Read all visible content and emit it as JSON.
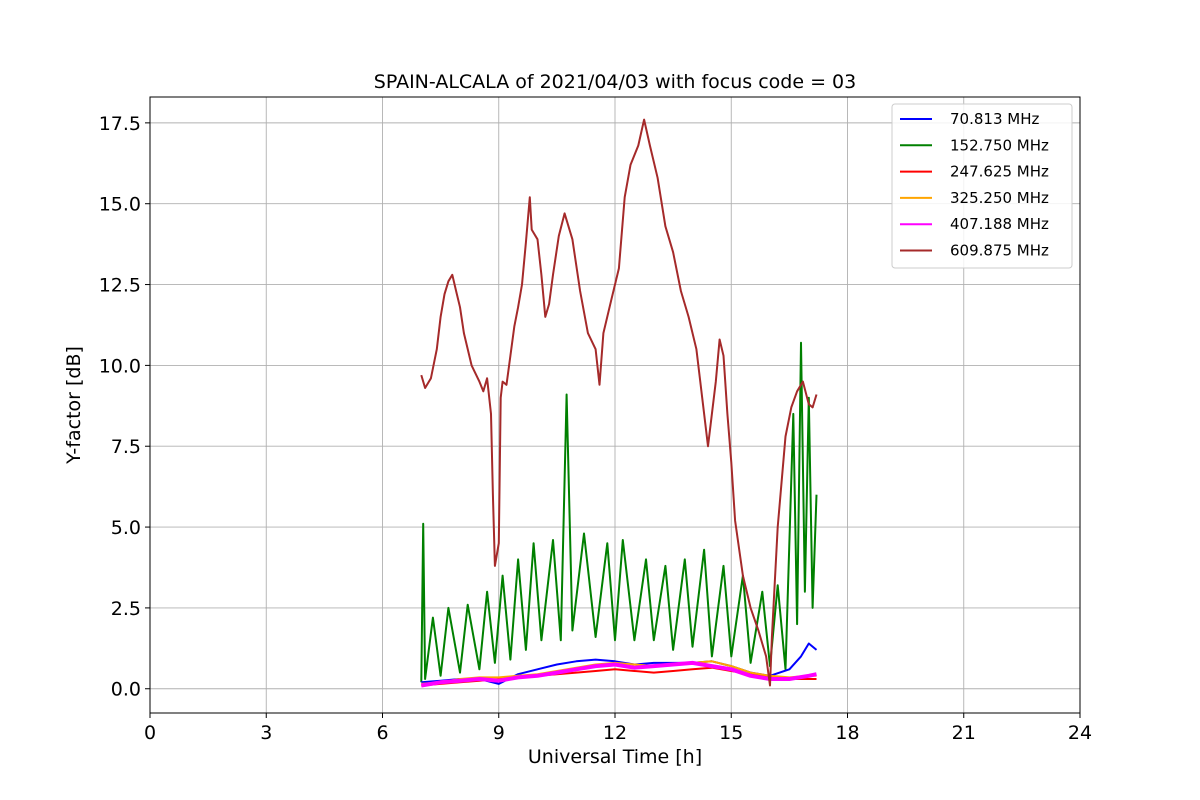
{
  "chart_data": {
    "type": "line",
    "title": "SPAIN-ALCALA of 2021/04/03 with focus code = 03",
    "xlabel": "Universal Time [h]",
    "ylabel": "Y-factor [dB]",
    "xlim": [
      0,
      24
    ],
    "ylim": [
      -0.75,
      18.3
    ],
    "xticks": [
      0,
      3,
      6,
      9,
      12,
      15,
      18,
      21,
      24
    ],
    "xtick_labels": [
      "0",
      "3",
      "6",
      "9",
      "12",
      "15",
      "18",
      "21",
      "24"
    ],
    "yticks": [
      0,
      2.5,
      5,
      7.5,
      10,
      12.5,
      15,
      17.5
    ],
    "ytick_labels": [
      "0.0",
      "2.5",
      "5.0",
      "7.5",
      "10.0",
      "12.5",
      "15.0",
      "17.5"
    ],
    "grid": true,
    "legend_position": "top-right",
    "series": [
      {
        "name": " 70.813 MHz",
        "color": "#0000ff",
        "points": [
          [
            7.0,
            0.2
          ],
          [
            7.5,
            0.25
          ],
          [
            8.0,
            0.3
          ],
          [
            8.5,
            0.3
          ],
          [
            9.0,
            0.15
          ],
          [
            9.5,
            0.45
          ],
          [
            10.0,
            0.6
          ],
          [
            10.5,
            0.75
          ],
          [
            11.0,
            0.85
          ],
          [
            11.5,
            0.9
          ],
          [
            12.0,
            0.85
          ],
          [
            12.5,
            0.75
          ],
          [
            13.0,
            0.8
          ],
          [
            13.5,
            0.8
          ],
          [
            14.0,
            0.8
          ],
          [
            14.5,
            0.85
          ],
          [
            15.0,
            0.7
          ],
          [
            15.5,
            0.5
          ],
          [
            16.0,
            0.4
          ],
          [
            16.5,
            0.6
          ],
          [
            16.8,
            1.0
          ],
          [
            17.0,
            1.4
          ],
          [
            17.2,
            1.2
          ]
        ]
      },
      {
        "name": "152.750 MHz",
        "color": "#008000",
        "points": [
          [
            7.0,
            0.2
          ],
          [
            7.05,
            5.1
          ],
          [
            7.1,
            0.3
          ],
          [
            7.3,
            2.2
          ],
          [
            7.5,
            0.4
          ],
          [
            7.7,
            2.5
          ],
          [
            8.0,
            0.5
          ],
          [
            8.2,
            2.6
          ],
          [
            8.5,
            0.6
          ],
          [
            8.7,
            3.0
          ],
          [
            8.9,
            0.8
          ],
          [
            9.1,
            3.5
          ],
          [
            9.3,
            0.9
          ],
          [
            9.5,
            4.0
          ],
          [
            9.7,
            1.2
          ],
          [
            9.9,
            4.5
          ],
          [
            10.1,
            1.5
          ],
          [
            10.4,
            4.6
          ],
          [
            10.6,
            1.5
          ],
          [
            10.75,
            9.1
          ],
          [
            10.9,
            1.8
          ],
          [
            11.2,
            4.8
          ],
          [
            11.5,
            1.6
          ],
          [
            11.8,
            4.5
          ],
          [
            12.0,
            1.5
          ],
          [
            12.2,
            4.6
          ],
          [
            12.5,
            1.5
          ],
          [
            12.8,
            4.0
          ],
          [
            13.0,
            1.5
          ],
          [
            13.3,
            3.8
          ],
          [
            13.5,
            1.2
          ],
          [
            13.8,
            4.0
          ],
          [
            14.0,
            1.3
          ],
          [
            14.3,
            4.3
          ],
          [
            14.5,
            1.0
          ],
          [
            14.8,
            3.8
          ],
          [
            15.0,
            1.0
          ],
          [
            15.3,
            3.5
          ],
          [
            15.5,
            0.8
          ],
          [
            15.8,
            3.0
          ],
          [
            16.0,
            0.7
          ],
          [
            16.2,
            3.2
          ],
          [
            16.4,
            0.6
          ],
          [
            16.6,
            8.5
          ],
          [
            16.7,
            2.0
          ],
          [
            16.8,
            10.7
          ],
          [
            16.9,
            3.0
          ],
          [
            17.0,
            9.0
          ],
          [
            17.1,
            2.5
          ],
          [
            17.2,
            6.0
          ]
        ]
      },
      {
        "name": "247.625 MHz",
        "color": "#ff0000",
        "points": [
          [
            7.0,
            0.1
          ],
          [
            7.5,
            0.15
          ],
          [
            8.0,
            0.2
          ],
          [
            8.5,
            0.25
          ],
          [
            9.0,
            0.3
          ],
          [
            9.5,
            0.35
          ],
          [
            10.0,
            0.4
          ],
          [
            10.5,
            0.45
          ],
          [
            11.0,
            0.5
          ],
          [
            11.5,
            0.55
          ],
          [
            12.0,
            0.6
          ],
          [
            12.5,
            0.55
          ],
          [
            13.0,
            0.5
          ],
          [
            13.5,
            0.55
          ],
          [
            14.0,
            0.6
          ],
          [
            14.5,
            0.65
          ],
          [
            15.0,
            0.55
          ],
          [
            15.5,
            0.45
          ],
          [
            16.0,
            0.35
          ],
          [
            16.5,
            0.3
          ],
          [
            17.0,
            0.3
          ],
          [
            17.2,
            0.3
          ]
        ]
      },
      {
        "name": "325.250 MHz",
        "color": "#ffa500",
        "points": [
          [
            7.0,
            0.15
          ],
          [
            7.5,
            0.2
          ],
          [
            8.0,
            0.3
          ],
          [
            8.5,
            0.35
          ],
          [
            9.0,
            0.35
          ],
          [
            9.5,
            0.4
          ],
          [
            10.0,
            0.45
          ],
          [
            10.5,
            0.55
          ],
          [
            11.0,
            0.65
          ],
          [
            11.5,
            0.75
          ],
          [
            12.0,
            0.8
          ],
          [
            12.5,
            0.75
          ],
          [
            13.0,
            0.7
          ],
          [
            13.5,
            0.75
          ],
          [
            14.0,
            0.8
          ],
          [
            14.5,
            0.85
          ],
          [
            15.0,
            0.7
          ],
          [
            15.5,
            0.5
          ],
          [
            16.0,
            0.4
          ],
          [
            16.5,
            0.35
          ],
          [
            17.0,
            0.4
          ],
          [
            17.2,
            0.4
          ]
        ]
      },
      {
        "name": "407.188 MHz",
        "color": "#ff00ff",
        "points": [
          [
            7.0,
            0.1
          ],
          [
            7.5,
            0.2
          ],
          [
            8.0,
            0.25
          ],
          [
            8.5,
            0.3
          ],
          [
            9.0,
            0.25
          ],
          [
            9.5,
            0.35
          ],
          [
            10.0,
            0.4
          ],
          [
            10.5,
            0.5
          ],
          [
            11.0,
            0.6
          ],
          [
            11.5,
            0.7
          ],
          [
            12.0,
            0.75
          ],
          [
            12.5,
            0.65
          ],
          [
            13.0,
            0.7
          ],
          [
            13.5,
            0.75
          ],
          [
            14.0,
            0.8
          ],
          [
            14.5,
            0.7
          ],
          [
            15.0,
            0.6
          ],
          [
            15.5,
            0.4
          ],
          [
            16.0,
            0.3
          ],
          [
            16.5,
            0.3
          ],
          [
            17.0,
            0.4
          ],
          [
            17.2,
            0.45
          ]
        ]
      },
      {
        "name": "609.875 MHz",
        "color": "#a52a2a",
        "points": [
          [
            7.0,
            9.7
          ],
          [
            7.1,
            9.3
          ],
          [
            7.25,
            9.6
          ],
          [
            7.4,
            10.5
          ],
          [
            7.5,
            11.5
          ],
          [
            7.6,
            12.2
          ],
          [
            7.7,
            12.6
          ],
          [
            7.8,
            12.8
          ],
          [
            7.9,
            12.3
          ],
          [
            8.0,
            11.8
          ],
          [
            8.1,
            11.0
          ],
          [
            8.3,
            10.0
          ],
          [
            8.5,
            9.5
          ],
          [
            8.6,
            9.2
          ],
          [
            8.7,
            9.6
          ],
          [
            8.8,
            8.5
          ],
          [
            8.85,
            6.0
          ],
          [
            8.9,
            3.8
          ],
          [
            9.0,
            4.5
          ],
          [
            9.05,
            9.0
          ],
          [
            9.1,
            9.5
          ],
          [
            9.2,
            9.4
          ],
          [
            9.3,
            10.3
          ],
          [
            9.4,
            11.2
          ],
          [
            9.5,
            11.8
          ],
          [
            9.6,
            12.5
          ],
          [
            9.7,
            13.8
          ],
          [
            9.8,
            15.2
          ],
          [
            9.85,
            14.2
          ],
          [
            10.0,
            13.9
          ],
          [
            10.1,
            12.8
          ],
          [
            10.2,
            11.5
          ],
          [
            10.3,
            11.9
          ],
          [
            10.4,
            12.8
          ],
          [
            10.55,
            14.0
          ],
          [
            10.7,
            14.7
          ],
          [
            10.9,
            13.9
          ],
          [
            11.1,
            12.3
          ],
          [
            11.3,
            11.0
          ],
          [
            11.5,
            10.5
          ],
          [
            11.6,
            9.4
          ],
          [
            11.7,
            11.0
          ],
          [
            11.9,
            12.0
          ],
          [
            12.1,
            13.0
          ],
          [
            12.25,
            15.2
          ],
          [
            12.4,
            16.2
          ],
          [
            12.6,
            16.8
          ],
          [
            12.75,
            17.6
          ],
          [
            12.9,
            16.8
          ],
          [
            13.1,
            15.8
          ],
          [
            13.3,
            14.3
          ],
          [
            13.5,
            13.5
          ],
          [
            13.7,
            12.3
          ],
          [
            13.9,
            11.5
          ],
          [
            14.1,
            10.5
          ],
          [
            14.25,
            9.0
          ],
          [
            14.4,
            7.5
          ],
          [
            14.5,
            8.5
          ],
          [
            14.6,
            9.5
          ],
          [
            14.7,
            10.8
          ],
          [
            14.8,
            10.3
          ],
          [
            14.9,
            8.5
          ],
          [
            15.0,
            7.0
          ],
          [
            15.1,
            5.2
          ],
          [
            15.3,
            3.5
          ],
          [
            15.5,
            2.5
          ],
          [
            15.7,
            1.8
          ],
          [
            15.9,
            1.0
          ],
          [
            16.0,
            0.1
          ],
          [
            16.05,
            1.6
          ],
          [
            16.2,
            5.0
          ],
          [
            16.4,
            7.8
          ],
          [
            16.55,
            8.7
          ],
          [
            16.7,
            9.2
          ],
          [
            16.85,
            9.5
          ],
          [
            17.0,
            8.8
          ],
          [
            17.1,
            8.7
          ],
          [
            17.2,
            9.1
          ]
        ]
      }
    ]
  }
}
